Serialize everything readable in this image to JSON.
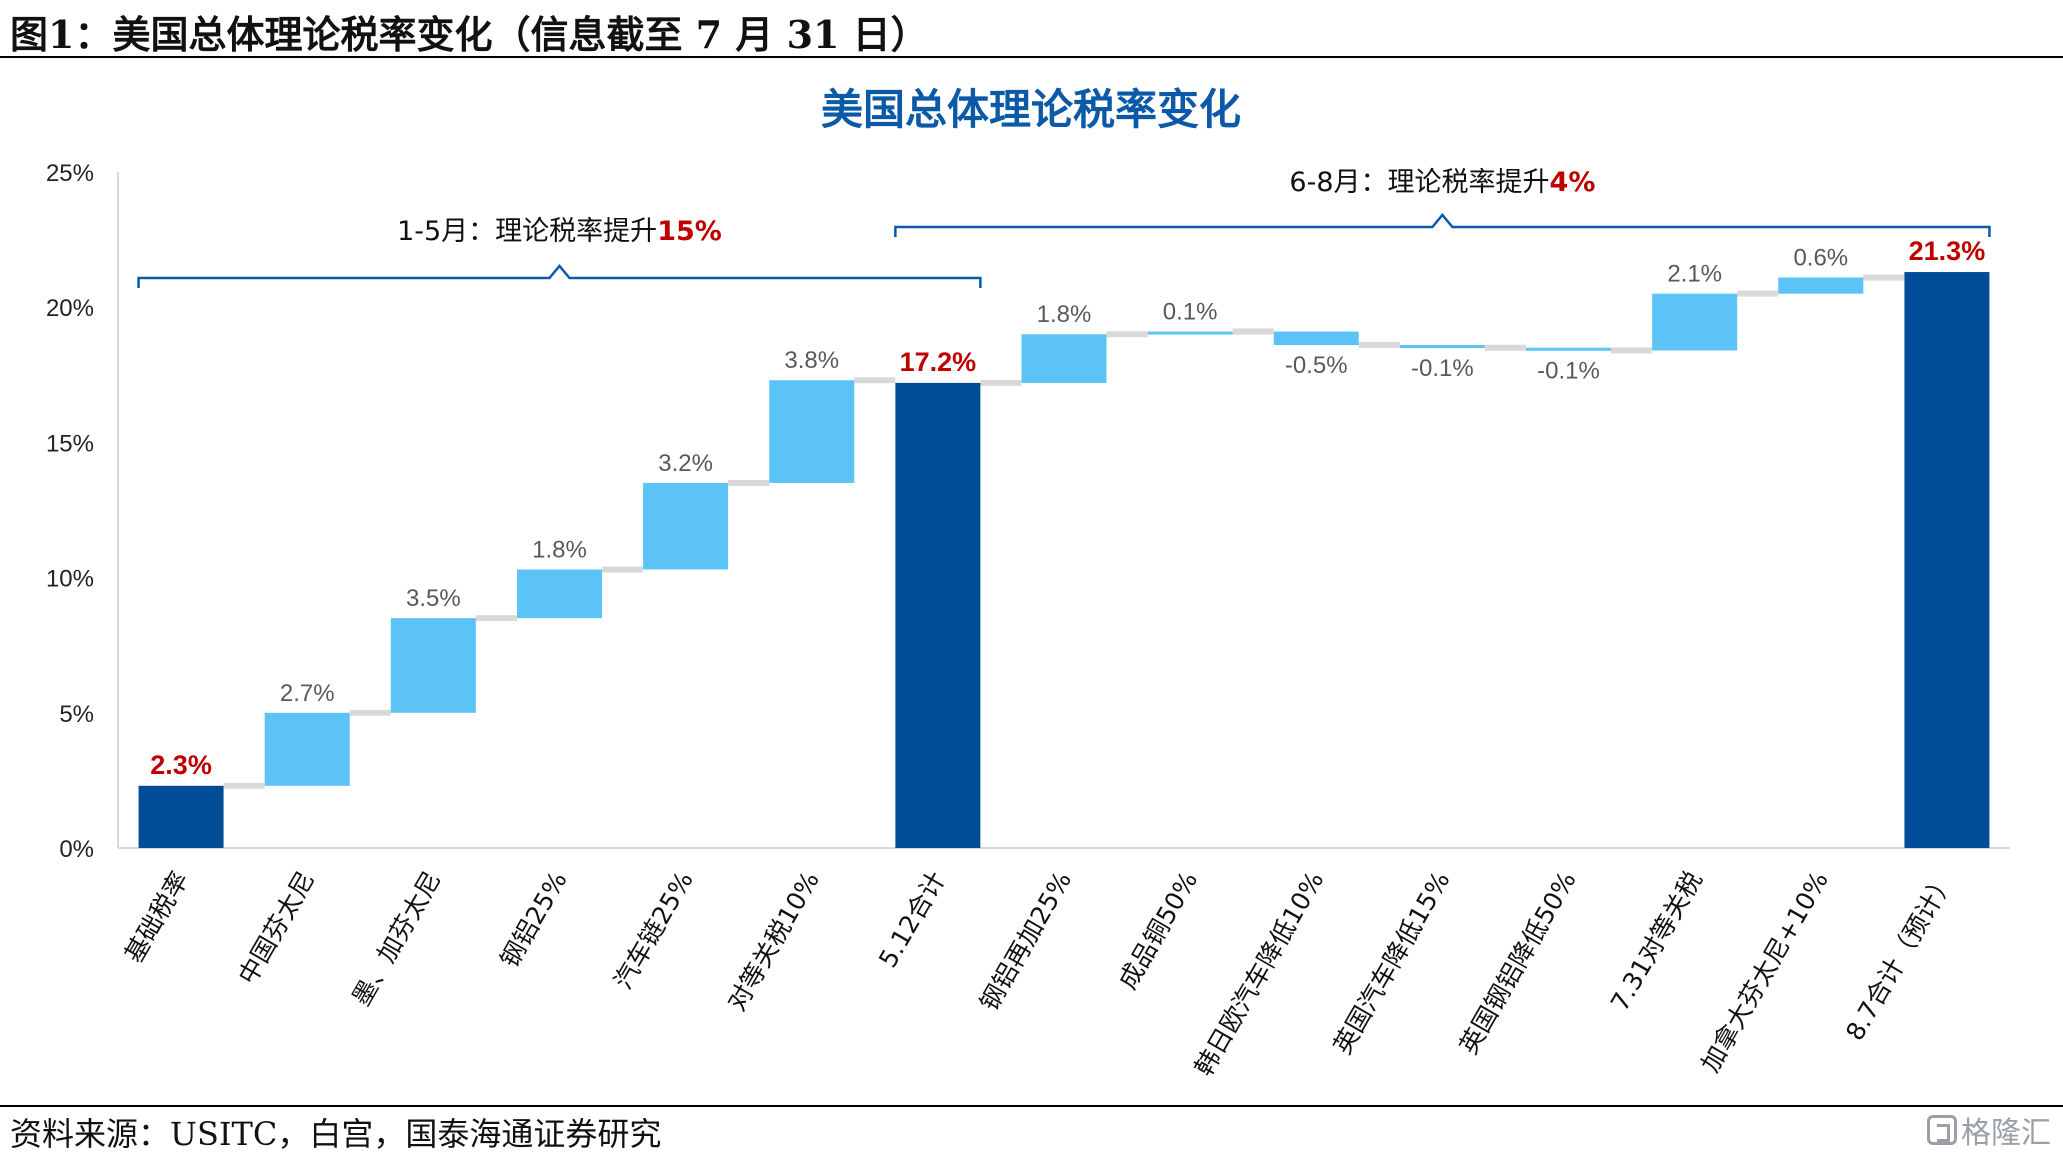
{
  "header": {
    "caption": "图1：美国总体理论税率变化（信息截至 7 月 31 日）"
  },
  "footer": {
    "source": "资料来源：USITC，白宫，国泰海通证券研究",
    "watermark": "格隆汇"
  },
  "colors": {
    "total_bar": "#004c97",
    "increment_bar": "#5bc3f5",
    "title": "#0b5aa8",
    "highlight": "#c00000",
    "bracket": "#0b5aa8",
    "connector": "#d9d9d9"
  },
  "chart_data": {
    "type": "waterfall",
    "title": "美国总体理论税率变化",
    "ylim": [
      0,
      25
    ],
    "yticks": [
      "0%",
      "5%",
      "10%",
      "15%",
      "20%",
      "25%"
    ],
    "grid": false,
    "categories": [
      "基础税率",
      "中国芬太尼",
      "墨、加芬太尼",
      "钢铝25%",
      "汽车链25%",
      "对等关税10%",
      "5.12合计",
      "钢铝再加25%",
      "成品铜50%",
      "韩日欧汽车降低10%",
      "英国汽车降低15%",
      "英国钢铝降低50%",
      "7.31对等关税",
      "加拿大芬太尼+10%",
      "8.7合计（预计）"
    ],
    "values": [
      2.3,
      2.7,
      3.5,
      1.8,
      3.2,
      3.8,
      17.2,
      1.8,
      0.1,
      -0.5,
      -0.1,
      -0.1,
      2.1,
      0.6,
      21.3
    ],
    "kinds": [
      "total",
      "delta",
      "delta",
      "delta",
      "delta",
      "delta",
      "total",
      "delta",
      "delta",
      "delta",
      "delta",
      "delta",
      "delta",
      "delta",
      "total"
    ],
    "labels": [
      "2.3%",
      "2.7%",
      "3.5%",
      "1.8%",
      "3.2%",
      "3.8%",
      "17.2%",
      "1.8%",
      "0.1%",
      "-0.5%",
      "-0.1%",
      "-0.1%",
      "2.1%",
      "0.6%",
      "21.3%"
    ],
    "annotations": [
      {
        "text": "1-5月：理论税率提升",
        "highlight": "15%",
        "from_index": 0,
        "to_index": 6
      },
      {
        "text": "6-8月：理论税率提升",
        "highlight": "4%",
        "from_index": 6,
        "to_index": 14
      }
    ]
  }
}
